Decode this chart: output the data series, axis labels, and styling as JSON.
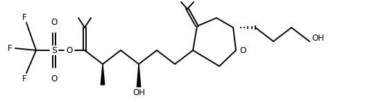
{
  "bg": "#ffffff",
  "lc": "#000000",
  "lw": 1.4,
  "figsize": [
    5.62,
    1.48
  ],
  "dpi": 100,
  "xlim": [
    0,
    562
  ],
  "ylim": [
    0,
    148
  ]
}
